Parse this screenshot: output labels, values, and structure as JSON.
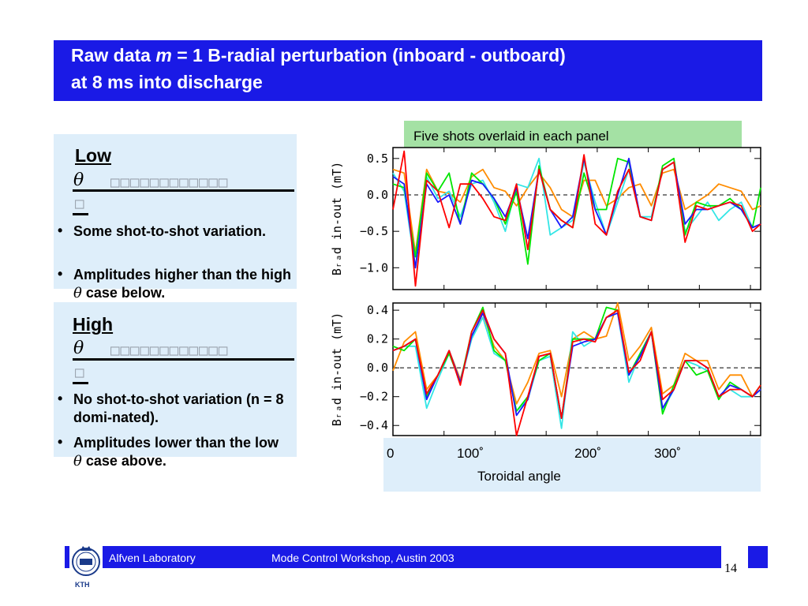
{
  "header": {
    "title_pre": "Raw data",
    "title_m": "m",
    "title_post": "= 1 B-radial perturbation (inboard - outboard)",
    "title_line2": "at 8 ms into discharge"
  },
  "note": "Five shots overlaid in each panel",
  "low_panel": {
    "heading": "Low",
    "theta": "θ",
    "boxes": "□□□□□□□□□□□□",
    "boxes2": "□",
    "bullets": [
      {
        "text": "Some shot-to-shot variation."
      },
      {
        "text_a": "Amplitudes higher than the high",
        "theta": "θ",
        "text_b": "case below."
      }
    ]
  },
  "high_panel": {
    "heading": "High",
    "theta": "θ",
    "boxes": "□□□□□□□□□□□□",
    "boxes2": "□",
    "bullets": [
      {
        "text": "No shot-to-shot variation (n = 8 domi-nated)."
      },
      {
        "text_a": "Amplitudes lower than the low",
        "theta": "θ",
        "text_b": "case above."
      }
    ]
  },
  "xaxis": {
    "ticks": [
      "0",
      "100˚",
      "200˚",
      "300˚"
    ],
    "label": "Toroidal angle"
  },
  "footer": {
    "left": "Alfven Laboratory",
    "center": "Mode Control Workshop, Austin 2003",
    "page": "14",
    "logo_text": "KTH"
  },
  "colors": {
    "title_bg": "#1a1ae6",
    "panel_bg": "#deeefa",
    "note_bg": "#a4e1a4",
    "series": [
      "#ff0000",
      "#00e600",
      "#1a1aff",
      "#33e6e6",
      "#ff8c00"
    ]
  },
  "chart_data": [
    {
      "type": "line",
      "ylabel": "B_rad in-out (mT)",
      "ylim": [
        -1.3,
        0.65
      ],
      "yticks": [
        "0.5",
        "0.0",
        "−0.5",
        "−1.0"
      ],
      "ytick_values": [
        0.5,
        0.0,
        -0.5,
        -1.0
      ],
      "xlim": [
        0,
        360
      ],
      "zero_line": "dashed",
      "series": [
        {
          "color": "#ff8c00",
          "x": [
            0,
            11,
            22,
            33,
            44,
            55,
            66,
            77,
            88,
            99,
            110,
            121,
            132,
            143,
            154,
            165,
            176,
            187,
            198,
            209,
            220,
            231,
            242,
            253,
            264,
            275,
            286,
            297,
            308,
            319,
            330,
            341,
            352,
            360
          ],
          "values": [
            0.35,
            0.3,
            -0.8,
            0.35,
            0.05,
            0.02,
            -0.1,
            0.25,
            0.35,
            0.1,
            0.05,
            -0.15,
            0.1,
            0.3,
            0.1,
            -0.2,
            -0.3,
            0.2,
            0.2,
            -0.15,
            -0.05,
            0.1,
            0.15,
            -0.15,
            0.3,
            0.35,
            -0.2,
            -0.1,
            0.0,
            0.15,
            0.1,
            0.05,
            -0.2,
            -0.15
          ]
        },
        {
          "color": "#33e6e6",
          "x": [
            0,
            11,
            22,
            33,
            44,
            55,
            66,
            77,
            88,
            99,
            110,
            121,
            132,
            143,
            154,
            165,
            176,
            187,
            198,
            209,
            220,
            231,
            242,
            253,
            264,
            275,
            286,
            297,
            308,
            319,
            330,
            341,
            352,
            360
          ],
          "values": [
            0.3,
            0.05,
            -1.0,
            0.25,
            -0.05,
            0.05,
            -0.3,
            0.15,
            0.2,
            -0.1,
            -0.5,
            0.15,
            0.1,
            0.5,
            -0.55,
            -0.45,
            -0.35,
            0.45,
            -0.1,
            -0.55,
            -0.1,
            0.35,
            -0.3,
            -0.3,
            0.35,
            0.45,
            -0.5,
            -0.3,
            -0.1,
            -0.35,
            -0.2,
            -0.1,
            -0.45,
            -0.4
          ]
        },
        {
          "color": "#00e600",
          "x": [
            0,
            11,
            22,
            33,
            44,
            55,
            66,
            77,
            88,
            99,
            110,
            121,
            132,
            143,
            154,
            165,
            176,
            187,
            198,
            209,
            220,
            231,
            242,
            253,
            264,
            275,
            286,
            297,
            308,
            319,
            330,
            341,
            352,
            360
          ],
          "values": [
            0.15,
            0.1,
            -0.85,
            0.3,
            0.05,
            0.3,
            -0.4,
            0.3,
            0.15,
            -0.05,
            -0.4,
            0.05,
            -0.95,
            0.4,
            -0.2,
            -0.35,
            -0.45,
            0.3,
            -0.2,
            -0.2,
            0.5,
            0.45,
            -0.3,
            -0.35,
            0.4,
            0.5,
            -0.55,
            -0.1,
            -0.15,
            -0.15,
            -0.05,
            -0.2,
            -0.45,
            0.1
          ]
        },
        {
          "color": "#1a1aff",
          "x": [
            0,
            11,
            22,
            33,
            44,
            55,
            66,
            77,
            88,
            99,
            110,
            121,
            132,
            143,
            154,
            165,
            176,
            187,
            198,
            209,
            220,
            231,
            242,
            253,
            264,
            275,
            286,
            297,
            308,
            319,
            330,
            341,
            352,
            360
          ],
          "values": [
            0.25,
            0.15,
            -1.0,
            0.15,
            -0.1,
            0.0,
            -0.4,
            0.2,
            0.15,
            -0.05,
            -0.3,
            0.1,
            -0.6,
            0.35,
            -0.2,
            -0.45,
            -0.3,
            0.5,
            -0.2,
            -0.55,
            0.0,
            0.5,
            -0.3,
            -0.35,
            0.35,
            0.45,
            -0.4,
            -0.2,
            -0.2,
            -0.15,
            -0.1,
            -0.2,
            -0.45,
            -0.4
          ]
        },
        {
          "color": "#ff0000",
          "x": [
            0,
            11,
            22,
            33,
            44,
            55,
            66,
            77,
            88,
            99,
            110,
            121,
            132,
            143,
            154,
            165,
            176,
            187,
            198,
            209,
            220,
            231,
            242,
            253,
            264,
            275,
            286,
            297,
            308,
            319,
            330,
            341,
            352,
            360
          ],
          "values": [
            -0.2,
            0.6,
            -1.25,
            0.2,
            0.05,
            -0.45,
            0.15,
            0.15,
            -0.05,
            -0.3,
            -0.35,
            0.15,
            -0.75,
            0.35,
            -0.2,
            -0.35,
            -0.45,
            0.55,
            -0.4,
            -0.55,
            0.05,
            0.35,
            -0.3,
            -0.35,
            0.35,
            0.45,
            -0.65,
            -0.15,
            -0.2,
            -0.15,
            -0.1,
            -0.15,
            -0.5,
            -0.4
          ]
        }
      ]
    },
    {
      "type": "line",
      "ylabel": "B_rad in-out (mT)",
      "ylim": [
        -0.47,
        0.45
      ],
      "yticks": [
        "0.4",
        "0.2",
        "0.0",
        "−0.2",
        "−0.4"
      ],
      "ytick_values": [
        0.4,
        0.2,
        0.0,
        -0.2,
        -0.4
      ],
      "xlim": [
        0,
        360
      ],
      "zero_line": "dashed",
      "series": [
        {
          "color": "#ff8c00",
          "x": [
            0,
            11,
            22,
            33,
            44,
            55,
            66,
            77,
            88,
            99,
            110,
            121,
            132,
            143,
            154,
            165,
            176,
            187,
            198,
            209,
            220,
            231,
            242,
            253,
            264,
            275,
            286,
            297,
            308,
            319,
            330,
            341,
            352,
            360
          ],
          "values": [
            -0.02,
            0.18,
            0.25,
            -0.15,
            -0.05,
            0.12,
            -0.08,
            0.2,
            0.38,
            0.15,
            0.05,
            -0.25,
            -0.1,
            0.1,
            0.12,
            -0.2,
            0.2,
            0.25,
            0.2,
            0.22,
            0.45,
            0.05,
            0.15,
            0.28,
            -0.18,
            -0.12,
            0.1,
            0.05,
            0.05,
            -0.15,
            -0.05,
            -0.05,
            -0.2,
            -0.15
          ]
        },
        {
          "color": "#33e6e6",
          "x": [
            0,
            11,
            22,
            33,
            44,
            55,
            66,
            77,
            88,
            99,
            110,
            121,
            132,
            143,
            154,
            165,
            176,
            187,
            198,
            209,
            220,
            231,
            242,
            253,
            264,
            275,
            286,
            297,
            308,
            319,
            330,
            341,
            352,
            360
          ],
          "values": [
            0.12,
            0.15,
            0.15,
            -0.28,
            -0.08,
            0.1,
            -0.1,
            0.2,
            0.35,
            0.1,
            0.05,
            -0.3,
            -0.22,
            0.05,
            0.08,
            -0.42,
            0.25,
            0.15,
            0.2,
            0.35,
            0.38,
            -0.1,
            0.1,
            0.25,
            -0.3,
            -0.15,
            0.05,
            0.02,
            -0.02,
            -0.2,
            -0.15,
            -0.2,
            -0.2,
            -0.15
          ]
        },
        {
          "color": "#00e600",
          "x": [
            0,
            11,
            22,
            33,
            44,
            55,
            66,
            77,
            88,
            99,
            110,
            121,
            132,
            143,
            154,
            165,
            176,
            187,
            198,
            209,
            220,
            231,
            242,
            253,
            264,
            275,
            286,
            297,
            308,
            319,
            330,
            341,
            352,
            360
          ],
          "values": [
            0.15,
            0.12,
            0.2,
            -0.2,
            -0.05,
            0.1,
            -0.1,
            0.25,
            0.42,
            0.12,
            0.05,
            -0.3,
            -0.2,
            0.05,
            0.1,
            -0.35,
            0.2,
            0.2,
            0.2,
            0.42,
            0.4,
            -0.05,
            0.1,
            0.25,
            -0.32,
            -0.12,
            0.05,
            -0.05,
            -0.02,
            -0.22,
            -0.1,
            -0.15,
            -0.2,
            -0.12
          ]
        },
        {
          "color": "#1a1aff",
          "x": [
            0,
            11,
            22,
            33,
            44,
            55,
            66,
            77,
            88,
            99,
            110,
            121,
            132,
            143,
            154,
            165,
            176,
            187,
            198,
            209,
            220,
            231,
            242,
            253,
            264,
            275,
            286,
            297,
            308,
            319,
            330,
            341,
            352,
            360
          ],
          "values": [
            0.12,
            0.15,
            0.2,
            -0.22,
            -0.05,
            0.12,
            -0.1,
            0.22,
            0.38,
            0.2,
            0.1,
            -0.33,
            -0.22,
            0.08,
            0.1,
            -0.35,
            0.15,
            0.18,
            0.2,
            0.35,
            0.38,
            -0.05,
            0.08,
            0.25,
            -0.28,
            -0.15,
            0.05,
            0.05,
            0.0,
            -0.2,
            -0.12,
            -0.15,
            -0.2,
            -0.15
          ]
        },
        {
          "color": "#ff0000",
          "x": [
            0,
            11,
            22,
            33,
            44,
            55,
            66,
            77,
            88,
            99,
            110,
            121,
            132,
            143,
            154,
            165,
            176,
            187,
            198,
            209,
            220,
            231,
            242,
            253,
            264,
            275,
            286,
            297,
            308,
            319,
            330,
            341,
            352,
            360
          ],
          "values": [
            0.12,
            0.15,
            0.2,
            -0.18,
            -0.05,
            0.12,
            -0.12,
            0.25,
            0.4,
            0.2,
            0.1,
            -0.47,
            -0.2,
            0.08,
            0.1,
            -0.35,
            0.18,
            0.2,
            0.18,
            0.35,
            0.4,
            -0.03,
            0.05,
            0.25,
            -0.22,
            -0.15,
            0.05,
            0.05,
            0.0,
            -0.2,
            -0.15,
            -0.15,
            -0.2,
            -0.12
          ]
        }
      ]
    }
  ]
}
